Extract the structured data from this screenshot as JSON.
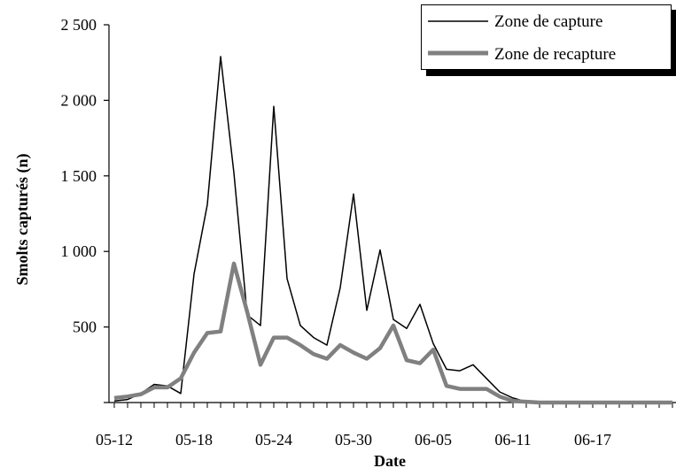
{
  "chart_data": {
    "type": "line",
    "xlabel": "Date",
    "ylabel": "Smolts capturés (n)",
    "x_tick_labels": [
      "05-12",
      "05-18",
      "05-24",
      "05-30",
      "06-05",
      "06-11",
      "06-17"
    ],
    "y_tick_labels": [
      "",
      "500",
      "1 000",
      "1 500",
      "2 000",
      "2 500"
    ],
    "ylim": [
      0,
      2500
    ],
    "y_ticks": [
      0,
      500,
      1000,
      1500,
      2000,
      2500
    ],
    "grid": false,
    "legend_position": "top-right",
    "x_start_label": "05-12",
    "x": [
      "05-12",
      "05-13",
      "05-14",
      "05-15",
      "05-16",
      "05-17",
      "05-18",
      "05-19",
      "05-20",
      "05-21",
      "05-22",
      "05-23",
      "05-24",
      "05-25",
      "05-26",
      "05-27",
      "05-28",
      "05-29",
      "05-30",
      "05-31",
      "06-01",
      "06-02",
      "06-03",
      "06-04",
      "06-05",
      "06-06",
      "06-07",
      "06-08",
      "06-09",
      "06-10",
      "06-11",
      "06-12",
      "06-13",
      "06-14",
      "06-15",
      "06-16",
      "06-17",
      "06-18",
      "06-19",
      "06-20",
      "06-21",
      "06-22",
      "06-23"
    ],
    "series": [
      {
        "name": "Zone de capture",
        "color": "#000000",
        "values": [
          10,
          20,
          60,
          120,
          110,
          60,
          850,
          1310,
          2290,
          1520,
          580,
          510,
          1960,
          820,
          510,
          430,
          380,
          760,
          1380,
          610,
          1010,
          550,
          490,
          650,
          390,
          220,
          210,
          250,
          160,
          70,
          30,
          5,
          0,
          0,
          0,
          0,
          0,
          0,
          0,
          0,
          0,
          0,
          0
        ]
      },
      {
        "name": "Zone de recapture",
        "color": "#808080",
        "values": [
          30,
          40,
          55,
          100,
          100,
          160,
          330,
          460,
          470,
          920,
          600,
          250,
          430,
          430,
          380,
          320,
          290,
          380,
          330,
          290,
          360,
          510,
          280,
          260,
          350,
          110,
          90,
          90,
          90,
          40,
          10,
          5,
          0,
          0,
          0,
          0,
          0,
          0,
          0,
          0,
          0,
          0,
          0
        ]
      }
    ]
  }
}
